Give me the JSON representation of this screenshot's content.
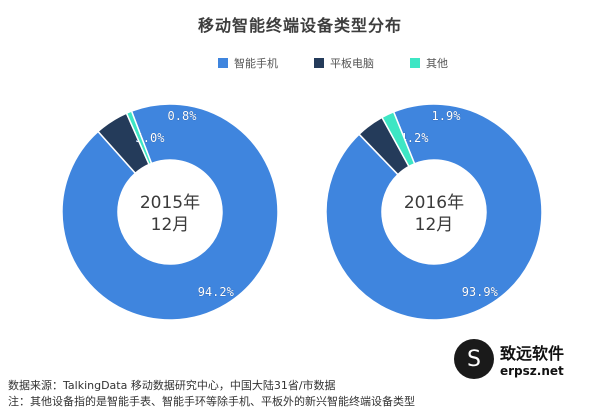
{
  "chart_data": {
    "type": "pie",
    "title": "移动智能终端设备类型分布",
    "legend": [
      "智能手机",
      "平板电脑",
      "其他"
    ],
    "colors": [
      "#3f85de",
      "#243b5a",
      "#3de6c4"
    ],
    "legend_position": "top",
    "charts": [
      {
        "center_label": [
          "2015年",
          "12月"
        ],
        "values": [
          94.2,
          5.0,
          0.8
        ],
        "labels": [
          "94.2%",
          "5.0%",
          "0.8%"
        ]
      },
      {
        "center_label": [
          "2016年",
          "12月"
        ],
        "values": [
          93.9,
          4.2,
          1.9
        ],
        "labels": [
          "93.9%",
          "4.2%",
          "1.9%"
        ]
      }
    ]
  },
  "footer": {
    "source": "数据来源：TalkingData 移动数据研究中心，中国大陆31省/市数据",
    "note": "注：其他设备指的是智能手表、智能手环等除手机、平板外的新兴智能终端设备类型"
  },
  "brand": {
    "name": "致远软件",
    "url": "erpsz.net"
  }
}
